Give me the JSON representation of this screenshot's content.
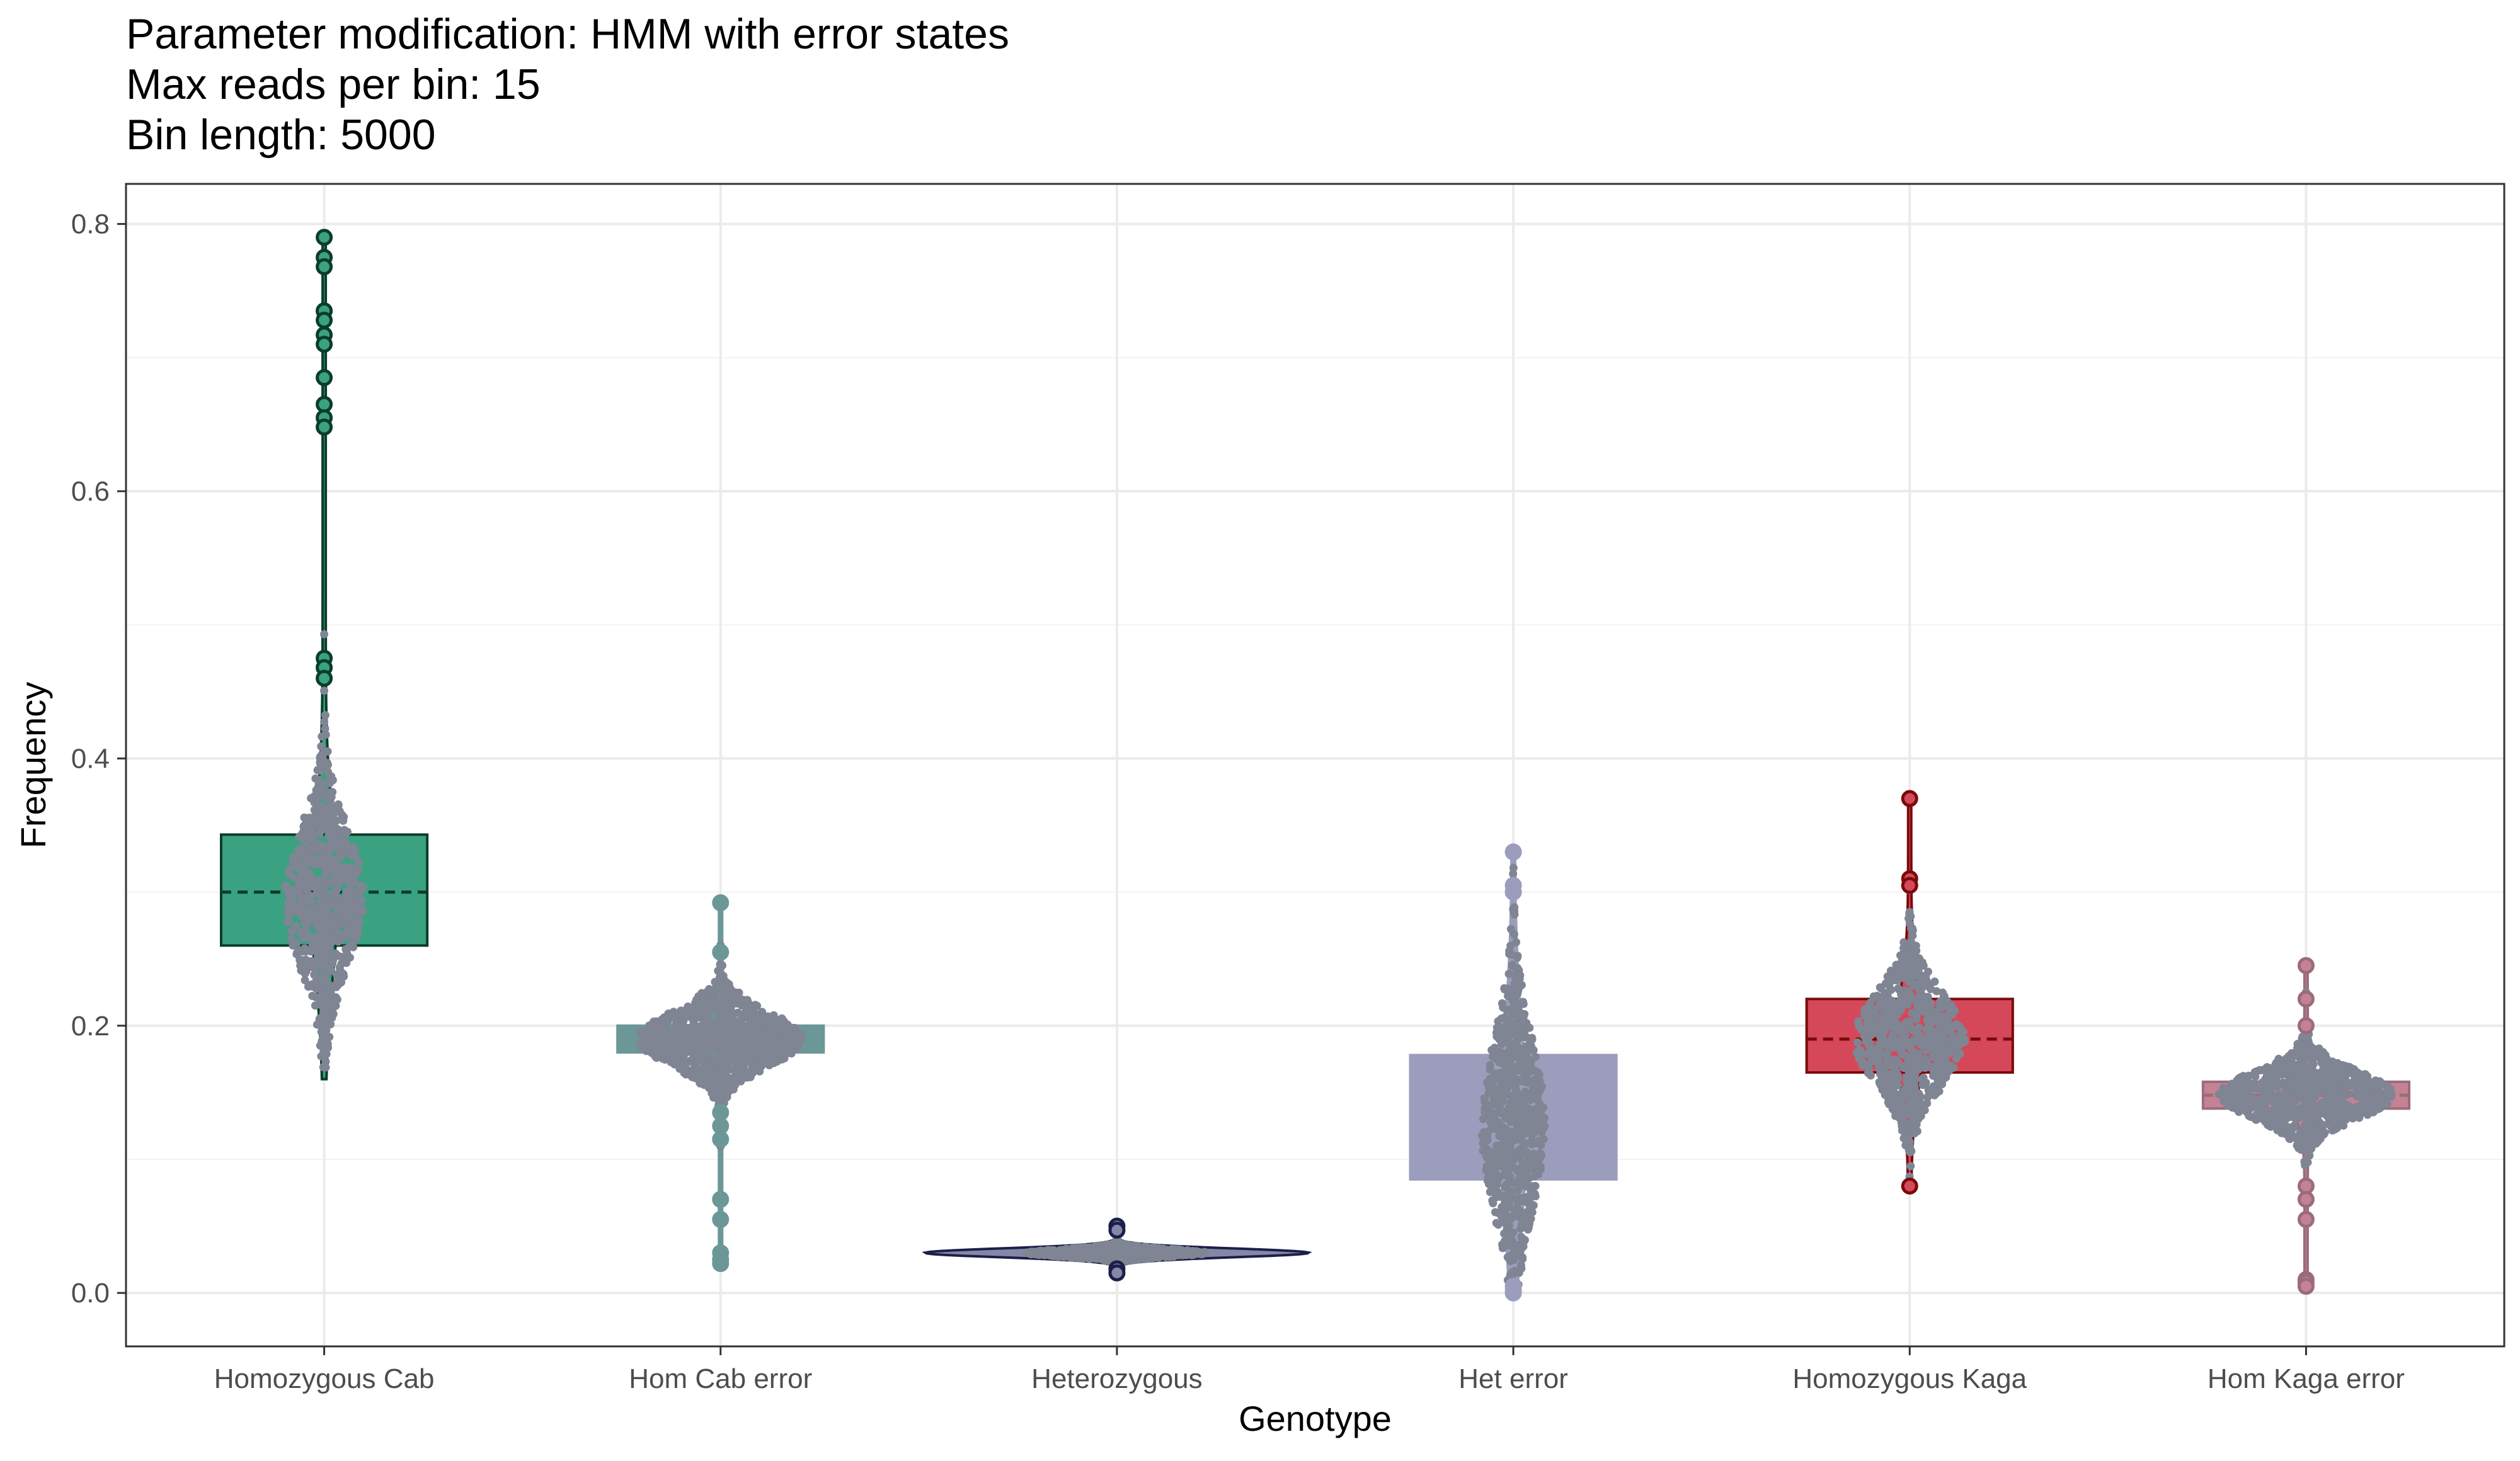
{
  "title_lines": [
    "Parameter modification: HMM with error states",
    "Max reads per bin: 15",
    "Bin length: 5000"
  ],
  "chart_data": {
    "type": "violin+box+beeswarm",
    "xlabel": "Genotype",
    "ylabel": "Frequency",
    "ylim": [
      -0.04,
      0.83
    ],
    "y_ticks": [
      0.0,
      0.2,
      0.4,
      0.6,
      0.8
    ],
    "y_tick_labels": [
      "0.0",
      "0.2",
      "0.4",
      "0.6",
      "0.8"
    ],
    "grid": true,
    "point_color": "#7f8593",
    "categories": [
      {
        "label": "Homozygous Cab",
        "fill": "#3aa181",
        "line": "#0b3d2a",
        "box": {
          "q1": 0.26,
          "median": 0.3,
          "q3": 0.343
        },
        "violin_range": [
          0.16,
          0.79
        ],
        "swarm": {
          "center": 0.295,
          "spread": 0.052,
          "halfwidth": 0.1,
          "count": 650
        },
        "outliers": [
          0.79,
          0.775,
          0.768,
          0.735,
          0.728,
          0.717,
          0.71,
          0.685,
          0.665,
          0.655,
          0.648,
          0.475,
          0.468,
          0.46
        ]
      },
      {
        "label": "Hom Cab error",
        "fill": "#6b9896",
        "line": "#6b9896",
        "box": {
          "q1": 0.18,
          "median": 0.19,
          "q3": 0.2
        },
        "violin_range": [
          0.022,
          0.292
        ],
        "swarm": {
          "center": 0.19,
          "spread": 0.02,
          "halfwidth": 0.21,
          "count": 900
        },
        "outliers": [
          0.292,
          0.255,
          0.135,
          0.125,
          0.115,
          0.07,
          0.055,
          0.03,
          0.025,
          0.022
        ]
      },
      {
        "label": "Heterozygous",
        "fill": "#8488a6",
        "line": "#1c1e4a",
        "box": {
          "q1": 0.027,
          "median": 0.03,
          "q3": 0.033
        },
        "violin_range": [
          0.015,
          0.05
        ],
        "swarm": {
          "center": 0.03,
          "spread": 0.003,
          "halfwidth": 0.23,
          "count": 900
        },
        "outliers": [
          0.05,
          0.047,
          0.018,
          0.015
        ]
      },
      {
        "label": "Het error",
        "fill": "#9c9dbd",
        "line": "#9c9dbd",
        "box": {
          "q1": 0.085,
          "median": 0.127,
          "q3": 0.178
        },
        "violin_range": [
          0.0,
          0.33
        ],
        "swarm": {
          "center": 0.125,
          "spread": 0.065,
          "halfwidth": 0.08,
          "count": 700
        },
        "outliers": [
          0.33,
          0.305,
          0.3,
          0.0,
          0.002,
          0.005
        ]
      },
      {
        "label": "Homozygous Kaga",
        "fill": "#d5485a",
        "line": "#7a0a0a",
        "box": {
          "q1": 0.165,
          "median": 0.19,
          "q3": 0.22
        },
        "violin_range": [
          0.08,
          0.37
        ],
        "swarm": {
          "center": 0.19,
          "spread": 0.035,
          "halfwidth": 0.14,
          "count": 700
        },
        "outliers": [
          0.37,
          0.31,
          0.305,
          0.08
        ]
      },
      {
        "label": "Hom Kaga error",
        "fill": "#c58295",
        "line": "#9a6c7a",
        "box": {
          "q1": 0.138,
          "median": 0.148,
          "q3": 0.158
        },
        "violin_range": [
          0.005,
          0.245
        ],
        "swarm": {
          "center": 0.148,
          "spread": 0.018,
          "halfwidth": 0.22,
          "count": 850
        },
        "outliers": [
          0.245,
          0.22,
          0.2,
          0.08,
          0.07,
          0.055,
          0.01,
          0.008,
          0.005
        ]
      }
    ]
  }
}
